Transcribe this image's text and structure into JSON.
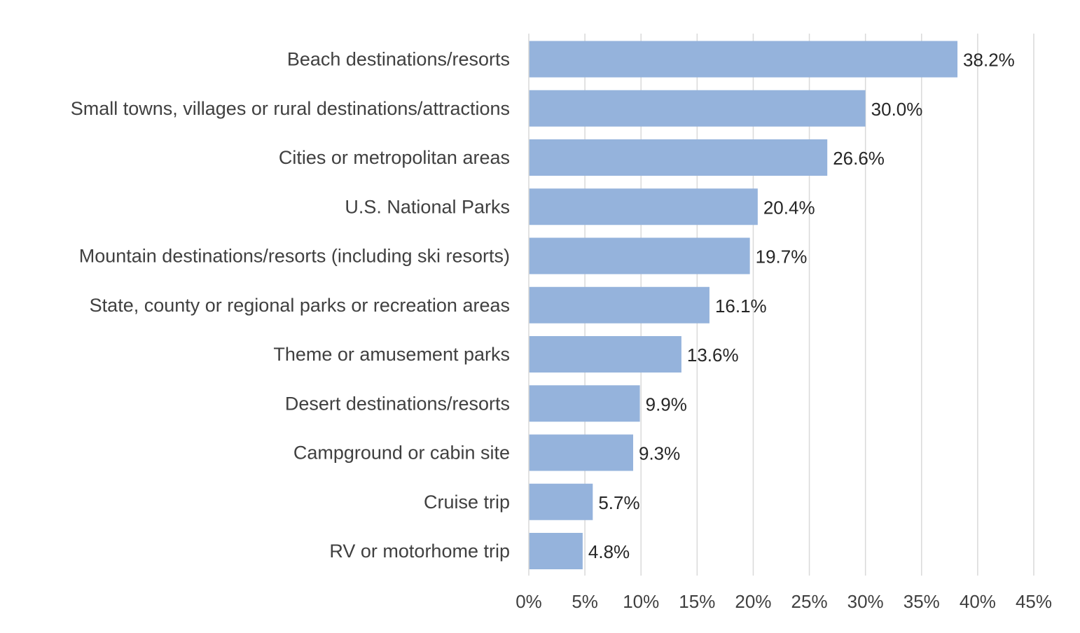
{
  "chart_data": {
    "type": "bar",
    "orientation": "horizontal",
    "title": "",
    "xlabel": "",
    "ylabel": "",
    "categories": [
      "Beach destinations/resorts",
      "Small towns, villages or rural destinations/attractions",
      "Cities or metropolitan areas",
      "U.S. National Parks",
      "Mountain destinations/resorts (including ski resorts)",
      "State, county or regional parks or recreation areas",
      "Theme or amusement parks",
      "Desert destinations/resorts",
      "Campground or cabin site",
      "Cruise trip",
      "RV or motorhome trip"
    ],
    "values": [
      38.2,
      30.0,
      26.6,
      20.4,
      19.7,
      16.1,
      13.6,
      9.9,
      9.3,
      5.7,
      4.8
    ],
    "value_labels": [
      "38.2%",
      "30.0%",
      "26.6%",
      "20.4%",
      "19.7%",
      "16.1%",
      "13.6%",
      "9.9%",
      "9.3%",
      "5.7%",
      "4.8%"
    ],
    "xlim": [
      0,
      45
    ],
    "x_ticks": [
      0,
      5,
      10,
      15,
      20,
      25,
      30,
      35,
      40,
      45
    ],
    "x_tick_labels": [
      "0%",
      "5%",
      "10%",
      "15%",
      "20%",
      "25%",
      "30%",
      "35%",
      "40%",
      "45%"
    ],
    "grid": true,
    "legend": "none",
    "bar_color": "#95b3dc"
  }
}
